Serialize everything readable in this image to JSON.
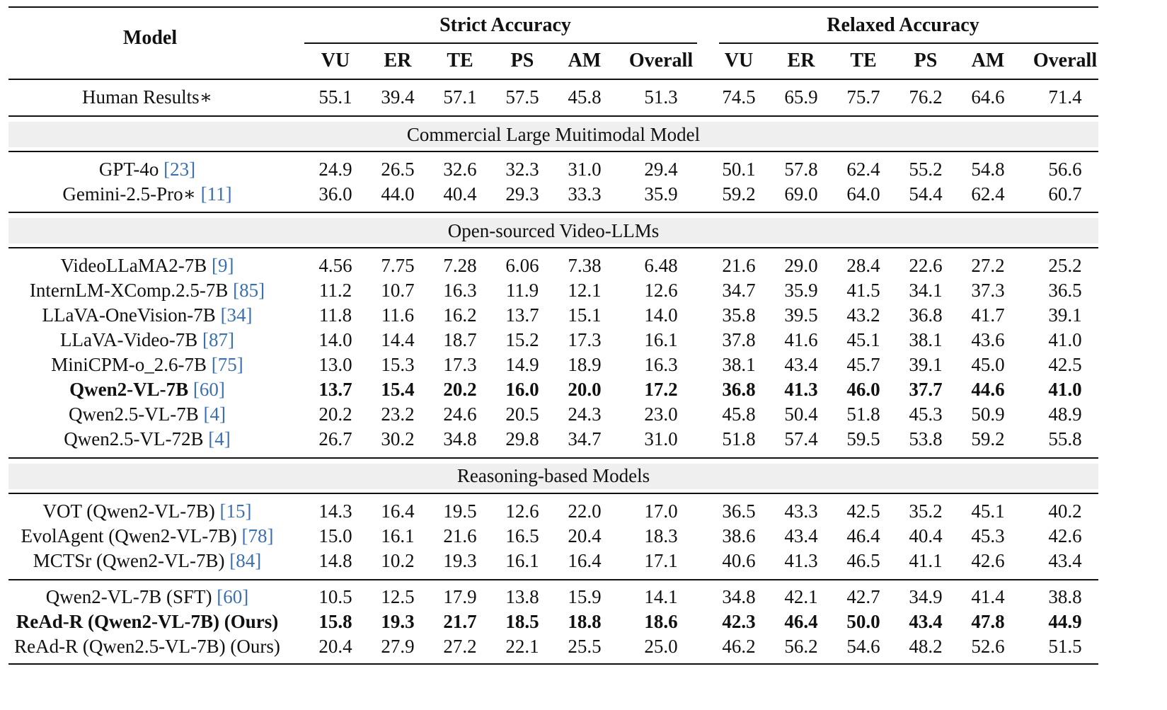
{
  "header": {
    "model": "Model",
    "groups": [
      "Strict Accuracy",
      "Relaxed Accuracy"
    ],
    "columns": [
      "VU",
      "ER",
      "TE",
      "PS",
      "AM",
      "Overall",
      "VU",
      "ER",
      "TE",
      "PS",
      "AM",
      "Overall"
    ]
  },
  "human": {
    "name": "Human Results∗",
    "ref": "",
    "bold": false,
    "values": [
      "55.1",
      "39.4",
      "57.1",
      "57.5",
      "45.8",
      "51.3",
      "74.5",
      "65.9",
      "75.7",
      "76.2",
      "64.6",
      "71.4"
    ]
  },
  "sections": [
    {
      "title": "Commercial Large Muitimodal Model",
      "rows": [
        {
          "name": "GPT-4o",
          "ref": "[23]",
          "bold": false,
          "values": [
            "24.9",
            "26.5",
            "32.6",
            "32.3",
            "31.0",
            "29.4",
            "50.1",
            "57.8",
            "62.4",
            "55.2",
            "54.8",
            "56.6"
          ]
        },
        {
          "name": "Gemini-2.5-Pro∗",
          "ref": "[11]",
          "bold": false,
          "values": [
            "36.0",
            "44.0",
            "40.4",
            "29.3",
            "33.3",
            "35.9",
            "59.2",
            "69.0",
            "64.0",
            "54.4",
            "62.4",
            "60.7"
          ]
        }
      ]
    },
    {
      "title": "Open-sourced Video-LLMs",
      "rows": [
        {
          "name": "VideoLLaMA2-7B",
          "ref": "[9]",
          "bold": false,
          "values": [
            "4.56",
            "7.75",
            "7.28",
            "6.06",
            "7.38",
            "6.48",
            "21.6",
            "29.0",
            "28.4",
            "22.6",
            "27.2",
            "25.2"
          ]
        },
        {
          "name": "InternLM-XComp.2.5-7B",
          "ref": "[85]",
          "bold": false,
          "values": [
            "11.2",
            "10.7",
            "16.3",
            "11.9",
            "12.1",
            "12.6",
            "34.7",
            "35.9",
            "41.5",
            "34.1",
            "37.3",
            "36.5"
          ]
        },
        {
          "name": "LLaVA-OneVision-7B",
          "ref": "[34]",
          "bold": false,
          "values": [
            "11.8",
            "11.6",
            "16.2",
            "13.7",
            "15.1",
            "14.0",
            "35.8",
            "39.5",
            "43.2",
            "36.8",
            "41.7",
            "39.1"
          ]
        },
        {
          "name": "LLaVA-Video-7B",
          "ref": "[87]",
          "bold": false,
          "values": [
            "14.0",
            "14.4",
            "18.7",
            "15.2",
            "17.3",
            "16.1",
            "37.8",
            "41.6",
            "45.1",
            "38.1",
            "43.6",
            "41.0"
          ]
        },
        {
          "name": "MiniCPM-o_2.6-7B",
          "ref": "[75]",
          "bold": false,
          "values": [
            "13.0",
            "15.3",
            "17.3",
            "14.9",
            "18.9",
            "16.3",
            "38.1",
            "43.4",
            "45.7",
            "39.1",
            "45.0",
            "42.5"
          ]
        },
        {
          "name": "Qwen2-VL-7B",
          "ref": "[60]",
          "bold": true,
          "values": [
            "13.7",
            "15.4",
            "20.2",
            "16.0",
            "20.0",
            "17.2",
            "36.8",
            "41.3",
            "46.0",
            "37.7",
            "44.6",
            "41.0"
          ]
        },
        {
          "name": "Qwen2.5-VL-7B",
          "ref": "[4]",
          "bold": false,
          "values": [
            "20.2",
            "23.2",
            "24.6",
            "20.5",
            "24.3",
            "23.0",
            "45.8",
            "50.4",
            "51.8",
            "45.3",
            "50.9",
            "48.9"
          ]
        },
        {
          "name": "Qwen2.5-VL-72B",
          "ref": "[4]",
          "bold": false,
          "values": [
            "26.7",
            "30.2",
            "34.8",
            "29.8",
            "34.7",
            "31.0",
            "51.8",
            "57.4",
            "59.5",
            "53.8",
            "59.2",
            "55.8"
          ]
        }
      ]
    },
    {
      "title": "Reasoning-based Models",
      "rows": [
        {
          "name": "VOT (Qwen2-VL-7B)",
          "ref": "[15]",
          "bold": false,
          "values": [
            "14.3",
            "16.4",
            "19.5",
            "12.6",
            "22.0",
            "17.0",
            "36.5",
            "43.3",
            "42.5",
            "35.2",
            "45.1",
            "40.2"
          ]
        },
        {
          "name": "EvolAgent (Qwen2-VL-7B)",
          "ref": "[78]",
          "bold": false,
          "values": [
            "15.0",
            "16.1",
            "21.6",
            "16.5",
            "20.4",
            "18.3",
            "38.6",
            "43.4",
            "46.4",
            "40.4",
            "45.3",
            "42.6"
          ]
        },
        {
          "name": "MCTSr (Qwen2-VL-7B)",
          "ref": "[84]",
          "bold": false,
          "values": [
            "14.8",
            "10.2",
            "19.3",
            "16.1",
            "16.4",
            "17.1",
            "40.6",
            "41.3",
            "46.5",
            "41.1",
            "42.6",
            "43.4"
          ]
        }
      ]
    },
    {
      "title": "",
      "rows": [
        {
          "name": "Qwen2-VL-7B (SFT)",
          "ref": "[60]",
          "bold": false,
          "values": [
            "10.5",
            "12.5",
            "17.9",
            "13.8",
            "15.9",
            "14.1",
            "34.8",
            "42.1",
            "42.7",
            "34.9",
            "41.4",
            "38.8"
          ]
        },
        {
          "name": "ReAd-R (Qwen2-VL-7B) (Ours)",
          "ref": "",
          "bold": true,
          "values": [
            "15.8",
            "19.3",
            "21.7",
            "18.5",
            "18.8",
            "18.6",
            "42.3",
            "46.4",
            "50.0",
            "43.4",
            "47.8",
            "44.9"
          ]
        },
        {
          "name": "ReAd-R (Qwen2.5-VL-7B) (Ours)",
          "ref": "",
          "bold": false,
          "values": [
            "20.4",
            "27.9",
            "27.2",
            "22.1",
            "25.5",
            "25.0",
            "46.2",
            "56.2",
            "54.6",
            "48.2",
            "52.6",
            "51.5"
          ]
        }
      ]
    }
  ]
}
